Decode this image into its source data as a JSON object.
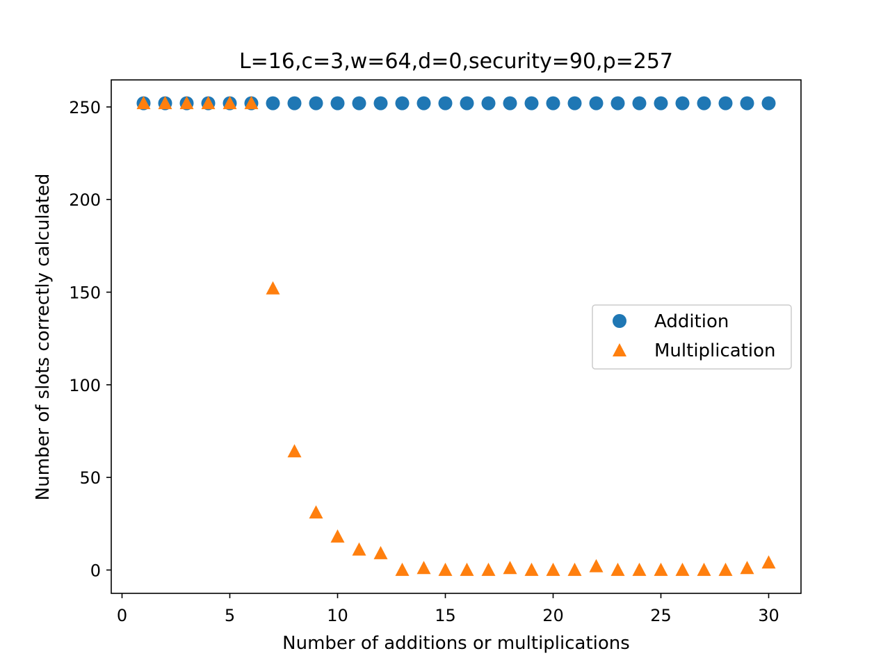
{
  "chart_data": {
    "type": "scatter",
    "title": "L=16,c=3,w=64,d=0,security=90,p=257",
    "xlabel": "Number of additions or multiplications",
    "ylabel": "Number of slots correctly calculated",
    "xlim": [
      -0.5,
      31.5
    ],
    "ylim": [
      -12.6,
      264.6
    ],
    "xticks": [
      0,
      5,
      10,
      15,
      20,
      25,
      30
    ],
    "yticks": [
      0,
      50,
      100,
      150,
      200,
      250
    ],
    "grid": false,
    "legend_position": "center-right",
    "x": [
      1,
      2,
      3,
      4,
      5,
      6,
      7,
      8,
      9,
      10,
      11,
      12,
      13,
      14,
      15,
      16,
      17,
      18,
      19,
      20,
      21,
      22,
      23,
      24,
      25,
      26,
      27,
      28,
      29,
      30
    ],
    "series": [
      {
        "name": "Addition",
        "marker": "circle",
        "color": "#1f77b4",
        "values": [
          252,
          252,
          252,
          252,
          252,
          252,
          252,
          252,
          252,
          252,
          252,
          252,
          252,
          252,
          252,
          252,
          252,
          252,
          252,
          252,
          252,
          252,
          252,
          252,
          252,
          252,
          252,
          252,
          252,
          252
        ]
      },
      {
        "name": "Multiplication",
        "marker": "triangle",
        "color": "#ff7f0e",
        "values": [
          252,
          252,
          252,
          252,
          252,
          252,
          152,
          64,
          31,
          18,
          11,
          9,
          0,
          1,
          0,
          0,
          0,
          1,
          0,
          0,
          0,
          2,
          0,
          0,
          0,
          0,
          0,
          0,
          1,
          4
        ]
      }
    ]
  }
}
